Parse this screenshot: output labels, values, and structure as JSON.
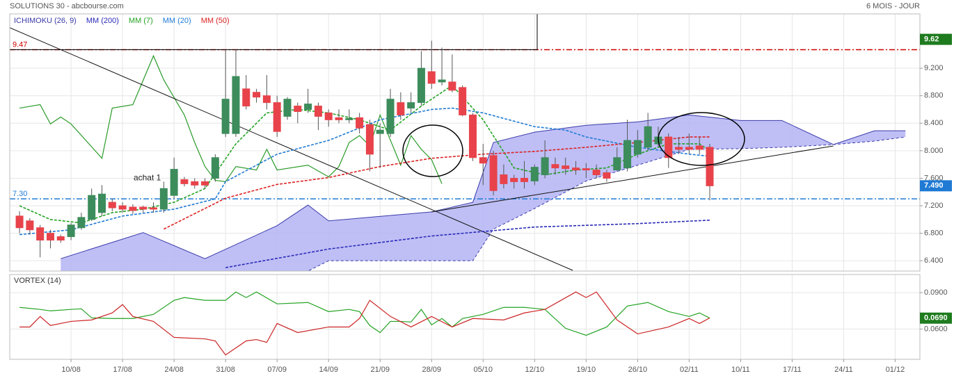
{
  "chart_data": {
    "type": "candlestick",
    "title": "SOLUTIONS 30 - abcbourse.com",
    "period": "6 MOIS - JOUR",
    "xlim": [
      -0.95,
      87.4
    ],
    "xticks": [
      {
        "value": 5,
        "label": "10/08"
      },
      {
        "value": 10,
        "label": "17/08"
      },
      {
        "value": 15,
        "label": "24/08"
      },
      {
        "value": 20,
        "label": "31/08"
      },
      {
        "value": 25,
        "label": "07/09"
      },
      {
        "value": 30,
        "label": "14/09"
      },
      {
        "value": 35,
        "label": "21/09"
      },
      {
        "value": 40,
        "label": "28/09"
      },
      {
        "value": 45,
        "label": "05/10"
      },
      {
        "value": 50,
        "label": "12/10"
      },
      {
        "value": 55,
        "label": "19/10"
      },
      {
        "value": 60,
        "label": "26/10"
      },
      {
        "value": 65,
        "label": "02/11"
      },
      {
        "value": 70,
        "label": "10/11"
      },
      {
        "value": 75,
        "label": "17/11"
      },
      {
        "value": 80,
        "label": "24/11"
      },
      {
        "value": 85,
        "label": "01/12"
      }
    ],
    "ylim": [
      6.25,
      9.99
    ],
    "yticks": [
      {
        "value": 6.4,
        "label": "6.400"
      },
      {
        "value": 6.8,
        "label": "6.800"
      },
      {
        "value": 7.2,
        "label": "7.200"
      },
      {
        "value": 7.6,
        "label": "7.600"
      },
      {
        "value": 8.0,
        "label": "8.000"
      },
      {
        "value": 8.4,
        "label": "8.400"
      },
      {
        "value": 8.8,
        "label": "8.800"
      },
      {
        "value": 9.2,
        "label": "9.200"
      }
    ],
    "grid": true,
    "up_color": "#3d8c5c",
    "down_color": "#e8434b",
    "candles": {
      "open": [
        7.05,
        6.98,
        6.88,
        6.8,
        6.75,
        6.75,
        6.88,
        7.0,
        7.1,
        7.25,
        7.2,
        7.18,
        7.18,
        7.17,
        7.15,
        7.35,
        7.58,
        7.55,
        7.55,
        7.6,
        8.25,
        8.25,
        8.9,
        8.85,
        8.8,
        8.7,
        8.5,
        8.65,
        8.6,
        8.65,
        8.55,
        8.48,
        8.45,
        8.48,
        8.38,
        8.25,
        8.25,
        8.7,
        8.62,
        8.7,
        9.15,
        9.0,
        9.0,
        8.92,
        8.52,
        7.9,
        7.93,
        7.65,
        7.6,
        7.6,
        7.56,
        7.65,
        7.8,
        7.78,
        7.75,
        7.74,
        7.72,
        7.68,
        7.72,
        7.75,
        7.95,
        8.05,
        8.1,
        8.2,
        8.05,
        8.05,
        8.07,
        8.05
      ],
      "high": [
        7.12,
        7.02,
        6.92,
        6.85,
        6.78,
        6.95,
        7.1,
        7.45,
        7.5,
        7.3,
        7.25,
        7.22,
        7.2,
        7.25,
        7.55,
        7.9,
        7.62,
        7.6,
        7.6,
        7.95,
        9.47,
        9.47,
        9.1,
        8.9,
        9.1,
        8.8,
        8.78,
        8.7,
        8.9,
        8.7,
        8.6,
        8.6,
        8.6,
        8.55,
        8.45,
        8.4,
        8.9,
        8.85,
        8.85,
        9.45,
        9.6,
        9.5,
        9.4,
        8.95,
        8.55,
        8.1,
        8.0,
        7.8,
        7.65,
        7.85,
        7.8,
        8.15,
        7.9,
        7.9,
        7.85,
        7.82,
        7.8,
        7.72,
        8.05,
        8.45,
        8.3,
        8.55,
        8.35,
        8.25,
        8.2,
        8.25,
        8.2,
        8.1
      ],
      "low": [
        6.8,
        6.78,
        6.45,
        6.58,
        6.66,
        6.7,
        6.85,
        6.98,
        7.05,
        7.12,
        7.1,
        7.08,
        7.1,
        7.1,
        7.1,
        7.3,
        7.48,
        7.45,
        7.45,
        7.55,
        8.2,
        8.2,
        8.6,
        8.7,
        8.6,
        8.2,
        8.45,
        8.4,
        8.55,
        8.3,
        8.35,
        8.4,
        8.4,
        8.25,
        7.7,
        7.75,
        8.2,
        8.45,
        8.55,
        8.65,
        8.9,
        8.95,
        8.85,
        8.5,
        7.85,
        7.5,
        7.35,
        7.45,
        7.45,
        7.45,
        7.5,
        7.6,
        7.65,
        7.65,
        7.65,
        7.6,
        7.6,
        7.55,
        7.7,
        7.7,
        7.9,
        8.0,
        8.05,
        7.75,
        7.95,
        7.95,
        7.95,
        7.28
      ],
      "close": [
        6.88,
        6.85,
        6.7,
        6.7,
        6.7,
        6.92,
        7.03,
        7.35,
        7.37,
        7.17,
        7.15,
        7.13,
        7.15,
        7.15,
        7.45,
        7.73,
        7.52,
        7.5,
        7.5,
        7.9,
        8.75,
        9.08,
        8.65,
        8.78,
        8.7,
        8.28,
        8.75,
        8.57,
        8.68,
        8.5,
        8.45,
        8.45,
        8.47,
        8.33,
        7.95,
        8.3,
        8.75,
        8.52,
        8.7,
        9.2,
        8.98,
        9.03,
        8.88,
        8.52,
        7.9,
        7.82,
        7.42,
        7.52,
        7.55,
        7.55,
        7.76,
        7.9,
        7.75,
        7.74,
        7.72,
        7.72,
        7.65,
        7.6,
        7.9,
        8.15,
        8.15,
        8.35,
        8.2,
        7.9,
        8.02,
        8.02,
        8.02,
        7.49
      ]
    },
    "ichimoku": {
      "name": "ICHIMOKU (26, 9)",
      "color": "#3a3aaa",
      "fill": "#b4b4f4",
      "x": [
        4,
        12,
        18,
        25,
        28,
        30,
        40,
        44,
        46,
        50,
        55,
        60,
        65,
        70,
        74,
        79,
        83,
        86
      ],
      "upper": [
        6.43,
        6.81,
        6.43,
        6.91,
        7.21,
        6.98,
        7.11,
        7.25,
        8.12,
        8.27,
        8.37,
        8.42,
        8.52,
        8.44,
        8.44,
        8.09,
        8.29,
        8.29
      ],
      "lower": [
        6.25,
        6.25,
        6.25,
        6.25,
        6.25,
        6.4,
        6.4,
        6.4,
        6.86,
        7.16,
        7.56,
        7.79,
        8.02,
        8.03,
        8.05,
        8.09,
        8.14,
        8.2
      ],
      "chikou_color": "#2a9a2a",
      "chikou_x": [
        0,
        2,
        3,
        4,
        5,
        8,
        9,
        11,
        13,
        14,
        16,
        17,
        18,
        19,
        20,
        21,
        23,
        24,
        25,
        28,
        30,
        31,
        32,
        33,
        34,
        35,
        37,
        38,
        39,
        40,
        41
      ],
      "chikou": [
        8.62,
        8.67,
        8.39,
        8.49,
        8.39,
        7.89,
        8.62,
        8.67,
        9.38,
        9.03,
        8.52,
        8.12,
        7.77,
        7.57,
        7.55,
        7.77,
        7.72,
        8.02,
        7.72,
        7.79,
        7.62,
        7.77,
        8.12,
        8.22,
        8.07,
        8.52,
        7.79,
        8.22,
        8.02,
        7.87,
        7.52
      ]
    },
    "series": [
      {
        "name": "MM (200)",
        "color": "#2a2ab8",
        "dashed": true,
        "x": [
          20,
          30,
          40,
          50,
          60,
          67
        ],
        "values": [
          6.3,
          6.57,
          6.76,
          6.89,
          6.94,
          6.99
        ]
      },
      {
        "name": "MM (7)",
        "color": "#22a322",
        "dashed": true,
        "x": [
          0,
          3,
          6,
          9,
          12,
          15,
          18,
          21,
          24,
          27,
          30,
          33,
          36,
          39,
          42,
          45,
          48,
          51,
          54,
          57,
          60,
          63,
          66,
          67
        ],
        "values": [
          7.2,
          7.0,
          6.95,
          7.1,
          7.15,
          7.25,
          7.45,
          8.1,
          8.55,
          8.6,
          8.55,
          8.45,
          8.3,
          8.65,
          8.95,
          8.45,
          7.75,
          7.65,
          7.72,
          7.75,
          7.95,
          8.1,
          8.1,
          8.0
        ]
      },
      {
        "name": "MM (20)",
        "color": "#1f7ad4",
        "dashed": true,
        "x": [
          0,
          5,
          10,
          15,
          19,
          20,
          25,
          30,
          35,
          40,
          42,
          45,
          50,
          53,
          55,
          60,
          65,
          67
        ],
        "values": [
          6.78,
          6.85,
          7.05,
          7.15,
          7.3,
          7.55,
          7.95,
          8.15,
          8.45,
          8.6,
          8.62,
          8.55,
          8.35,
          8.3,
          8.2,
          8.05,
          7.95,
          7.92
        ]
      },
      {
        "name": "MM (50)",
        "color": "#dd2222",
        "dashed": true,
        "x": [
          14,
          20,
          25,
          30,
          35,
          40,
          45,
          50,
          55,
          60,
          65,
          67
        ],
        "values": [
          6.86,
          7.31,
          7.51,
          7.61,
          7.77,
          7.89,
          7.95,
          7.99,
          8.05,
          8.12,
          8.2,
          8.2
        ]
      }
    ],
    "levels": [
      {
        "value": 9.47,
        "label": "9.47",
        "color": "#cc0000"
      },
      {
        "value": 7.3,
        "label": "7.30",
        "color": "#1f7ad4"
      }
    ],
    "markers": [
      {
        "value": 9.62,
        "label": "9.62",
        "color": "#1e7b1e"
      },
      {
        "value": 7.49,
        "label": "7.490",
        "color": "#1f7ad4"
      }
    ],
    "trendlines": [
      {
        "x": [
          -0.95,
          53.7
        ],
        "values": [
          9.79,
          6.26
        ]
      },
      {
        "x": [
          40,
          79
        ],
        "values": [
          7.11,
          8.07
        ]
      }
    ],
    "annotations": [
      {
        "text": "achat 1",
        "x": 12.4,
        "y": 7.6
      }
    ],
    "vortex": {
      "title": "VORTEX (14)",
      "ylim": [
        0.035,
        0.105
      ],
      "yticks": [
        {
          "value": 0.06,
          "label": "0.0600"
        },
        {
          "value": 0.09,
          "label": "0.0900"
        }
      ],
      "series": [
        {
          "color": "#22a322",
          "x": [
            0,
            2,
            3,
            5,
            6,
            7,
            9,
            11,
            13,
            15,
            16,
            18,
            20,
            21,
            22,
            23,
            25,
            28,
            30,
            32,
            33,
            34,
            35,
            36,
            37,
            38,
            39,
            40,
            41,
            42,
            43,
            45,
            47,
            49,
            51,
            53,
            55,
            57,
            59,
            61,
            63,
            65,
            66,
            67
          ],
          "values": [
            0.0779,
            0.0762,
            0.075,
            0.0762,
            0.0767,
            0.0692,
            0.0687,
            0.0687,
            0.0721,
            0.0837,
            0.086,
            0.0837,
            0.0837,
            0.0906,
            0.086,
            0.0906,
            0.0808,
            0.0819,
            0.0744,
            0.0762,
            0.0744,
            0.0629,
            0.0571,
            0.0663,
            0.0663,
            0.0658,
            0.0762,
            0.0635,
            0.0687,
            0.0617,
            0.0687,
            0.0721,
            0.0779,
            0.0779,
            0.0762,
            0.0606,
            0.0548,
            0.0617,
            0.079,
            0.0819,
            0.0744,
            0.0704,
            0.0733,
            0.069
          ]
        },
        {
          "color": "#cc2222",
          "x": [
            0,
            1,
            2,
            3,
            5,
            7,
            9,
            10,
            11,
            13,
            15,
            18,
            19,
            20,
            22,
            23,
            24,
            25,
            27,
            30,
            32,
            33,
            34,
            36,
            38,
            40,
            42,
            44,
            47,
            49,
            51,
            54,
            55,
            56,
            58,
            60,
            63,
            65,
            66,
            67
          ],
          "values": [
            0.0617,
            0.0617,
            0.0704,
            0.0629,
            0.0663,
            0.0675,
            0.0733,
            0.0802,
            0.0704,
            0.0663,
            0.0531,
            0.0519,
            0.0502,
            0.0386,
            0.0502,
            0.0513,
            0.049,
            0.0646,
            0.0571,
            0.0617,
            0.0617,
            0.0687,
            0.0837,
            0.0704,
            0.0617,
            0.0704,
            0.0617,
            0.0687,
            0.0675,
            0.0733,
            0.0762,
            0.0906,
            0.086,
            0.0906,
            0.0675,
            0.056,
            0.0617,
            0.0687,
            0.0646,
            0.0692
          ]
        }
      ],
      "marker": {
        "value": 0.069,
        "label": "0.0690",
        "color": "#1e7b1e"
      }
    }
  }
}
